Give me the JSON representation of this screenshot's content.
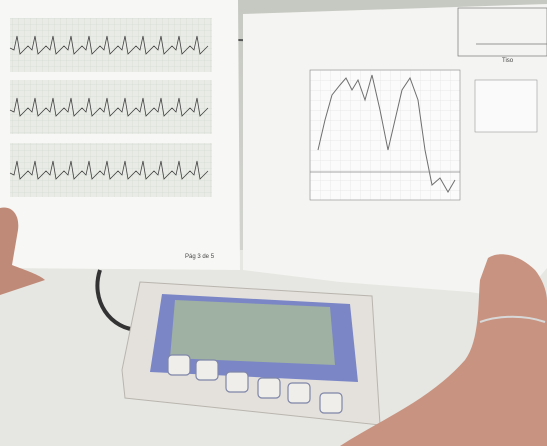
{
  "left_sheet": {
    "footer": "Pág 3 de 5"
  },
  "right_sheet": {
    "corner_label": "Tiso"
  }
}
